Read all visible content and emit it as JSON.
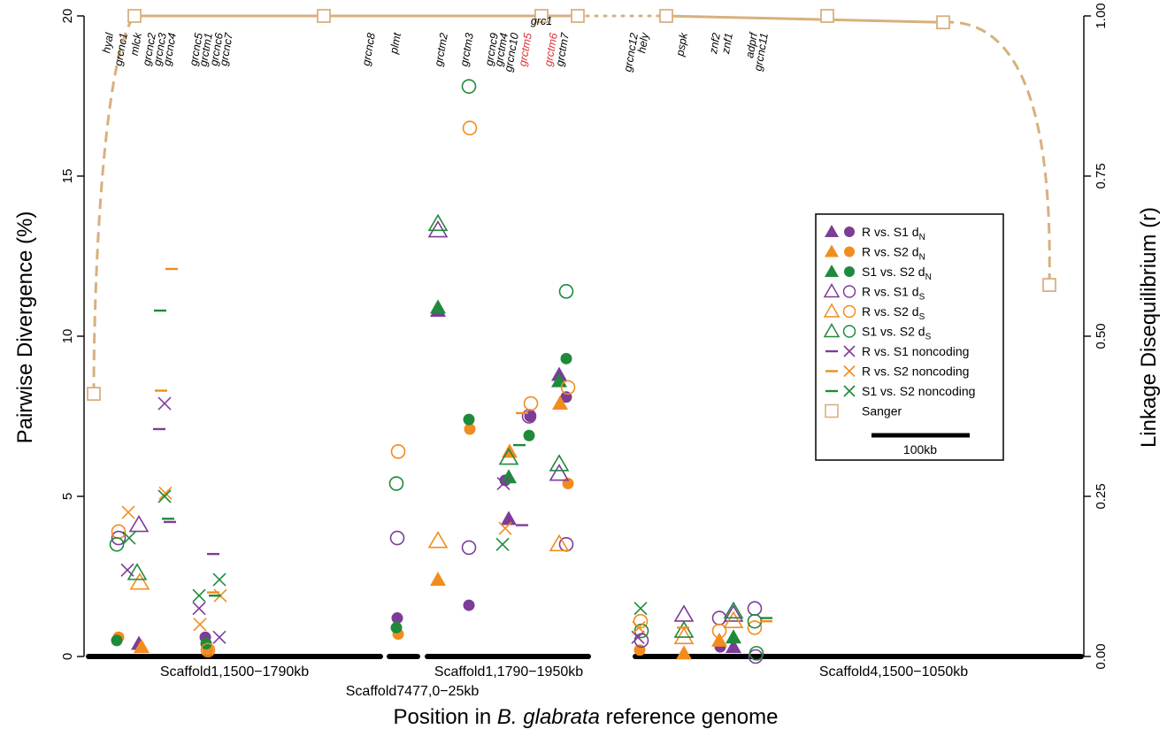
{
  "colors": {
    "R_S1": "#7d3c98",
    "R_S2": "#f28c1e",
    "S1_S2": "#1f8a3c",
    "sanger": "#d8b07e",
    "axis": "#000000"
  },
  "chart_data": {
    "type": "scatter",
    "xlabel_pre": "Position in ",
    "xlabel_italic": "B. glabrata",
    "xlabel_post": " reference genome",
    "ylabel_left": "Pairwise Divergence (%)",
    "ylabel_right": "Linkage Disequilibrium (r)",
    "y_left_ticks": [
      "0",
      "5",
      "10",
      "15",
      "20"
    ],
    "y_right_ticks": [
      "0.00",
      "0.25",
      "0.50",
      "0.75",
      "1.00"
    ],
    "ylim_left": [
      0,
      20
    ],
    "ylim_right": [
      0,
      1
    ],
    "scaffolds": [
      {
        "label": "Scaffold1,1500−1790kb"
      },
      {
        "label": "Scaffold7477,0−25kb"
      },
      {
        "label": "Scaffold1,1790−1950kb"
      },
      {
        "label": "Scaffold4,1500−1050kb"
      }
    ],
    "genes": [
      {
        "name": "hyal",
        "highlight": false
      },
      {
        "name": "grcnc1",
        "highlight": false
      },
      {
        "name": "mlck",
        "highlight": false
      },
      {
        "name": "grcnc2",
        "highlight": false
      },
      {
        "name": "grcnc3",
        "highlight": false
      },
      {
        "name": "grcnc4",
        "highlight": false
      },
      {
        "name": "grcnc5",
        "highlight": false
      },
      {
        "name": "grctm1",
        "highlight": false
      },
      {
        "name": "grcnc6",
        "highlight": false
      },
      {
        "name": "grcnc7",
        "highlight": false
      },
      {
        "name": "grcnc8",
        "highlight": false
      },
      {
        "name": "plmt",
        "highlight": false
      },
      {
        "name": "grctm2",
        "highlight": false
      },
      {
        "name": "grctm3",
        "highlight": false
      },
      {
        "name": "grcnc9",
        "highlight": false
      },
      {
        "name": "grctm4",
        "highlight": false
      },
      {
        "name": "grcnc10",
        "highlight": false
      },
      {
        "name": "grctm5",
        "highlight": true
      },
      {
        "name": "grctm6",
        "highlight": true
      },
      {
        "name": "grctm7",
        "highlight": false
      },
      {
        "name": "grc1",
        "highlight": false
      },
      {
        "name": "grcnc12",
        "highlight": false
      },
      {
        "name": "hely",
        "highlight": false
      },
      {
        "name": "pspk",
        "highlight": false
      },
      {
        "name": "znf2",
        "highlight": false
      },
      {
        "name": "znf1",
        "highlight": false
      },
      {
        "name": "adprf",
        "highlight": false
      },
      {
        "name": "grcnc11",
        "highlight": false
      }
    ],
    "legend": [
      {
        "label": "R vs. S1 d",
        "sub": "N",
        "color": "R_S1",
        "kind": "dN"
      },
      {
        "label": "R vs. S2 d",
        "sub": "N",
        "color": "R_S2",
        "kind": "dN"
      },
      {
        "label": "S1 vs. S2 d",
        "sub": "N",
        "color": "S1_S2",
        "kind": "dN"
      },
      {
        "label": "R vs. S1 d",
        "sub": "S",
        "color": "R_S1",
        "kind": "dS"
      },
      {
        "label": "R vs. S2 d",
        "sub": "S",
        "color": "R_S2",
        "kind": "dS"
      },
      {
        "label": "S1 vs. S2 d",
        "sub": "S",
        "color": "S1_S2",
        "kind": "dS"
      },
      {
        "label": "R vs. S1 noncoding",
        "sub": "",
        "color": "R_S1",
        "kind": "nc"
      },
      {
        "label": "R vs. S2 noncoding",
        "sub": "",
        "color": "R_S2",
        "kind": "nc"
      },
      {
        "label": "S1 vs. S2 noncoding",
        "sub": "",
        "color": "S1_S2",
        "kind": "nc"
      },
      {
        "label": "Sanger",
        "sub": "",
        "color": "sanger",
        "kind": "sanger"
      }
    ],
    "scalebar_label": "100kb",
    "sanger_r": [
      0.41,
      1.0,
      1.0,
      1.0,
      1.0,
      1.0,
      1.0,
      0.99,
      0.58
    ],
    "series": [
      {
        "name": "R vs. S1 dN",
        "color": "R_S1",
        "shapes": [
          "tri_f",
          "circ_f"
        ],
        "tri": [
          0.4,
          10.8,
          4.3,
          8.8,
          0.3
        ],
        "circ": [
          0.6,
          1.2,
          1.6,
          5.5,
          7.5,
          8.1,
          0.3
        ]
      },
      {
        "name": "R vs. S2 dN",
        "color": "R_S2",
        "shapes": [
          "tri_f",
          "circ_f"
        ],
        "tri": [
          0.3,
          2.4,
          6.4,
          7.9,
          0.1,
          0.5
        ],
        "circ": [
          0.6,
          0.2,
          0.7,
          7.1,
          5.4,
          0.2
        ]
      },
      {
        "name": "S1 vs. S2 dN",
        "color": "S1_S2",
        "shapes": [
          "tri_f",
          "circ_f"
        ],
        "tri": [
          10.9,
          5.6,
          8.6,
          0.6
        ],
        "circ": [
          0.5,
          0.4,
          0.9,
          7.4,
          6.9,
          9.3
        ]
      },
      {
        "name": "R vs. S1 dS",
        "color": "R_S1",
        "shapes": [
          "tri_o",
          "circ_o"
        ],
        "tri": [
          4.1,
          13.3,
          5.7,
          1.3,
          1.3
        ],
        "circ": [
          3.7,
          3.7,
          3.4,
          7.5,
          3.5,
          0.5,
          1.2,
          1.5,
          0.0
        ]
      },
      {
        "name": "R vs. S2 dS",
        "color": "R_S2",
        "shapes": [
          "tri_o",
          "circ_o"
        ],
        "tri": [
          2.3,
          3.6,
          3.5,
          0.6,
          1.1
        ],
        "circ": [
          3.9,
          0.2,
          6.4,
          16.5,
          7.9,
          8.4,
          1.1,
          0.8,
          0.9
        ]
      },
      {
        "name": "S1 vs. S2 dS",
        "color": "S1_S2",
        "shapes": [
          "tri_o",
          "circ_o"
        ],
        "tri": [
          2.6,
          13.5,
          6.0,
          6.2,
          0.8,
          1.4
        ],
        "circ": [
          3.5,
          5.4,
          17.8,
          11.4,
          0.8,
          1.1,
          0.1
        ]
      },
      {
        "name": "R vs. S1 noncoding",
        "color": "R_S1",
        "shapes": [
          "dash",
          "cross"
        ],
        "dash": [
          7.1,
          4.2,
          3.2,
          4.1
        ],
        "cross": [
          2.7,
          7.9,
          1.5,
          0.6,
          5.4,
          0.6
        ]
      },
      {
        "name": "R vs. S2 noncoding",
        "color": "R_S2",
        "shapes": [
          "dash",
          "cross"
        ],
        "dash": [
          8.3,
          12.1,
          2.0,
          7.6,
          0.9,
          1.1
        ],
        "cross": [
          4.5,
          5.1,
          1.0,
          1.9,
          4.0,
          0.9
        ]
      },
      {
        "name": "S1 vs. S2 noncoding",
        "color": "S1_S2",
        "shapes": [
          "dash",
          "cross"
        ],
        "dash": [
          10.8,
          4.3,
          1.9,
          6.6,
          1.2
        ],
        "cross": [
          3.7,
          5.0,
          1.9,
          2.4,
          3.5,
          1.5
        ]
      }
    ]
  }
}
